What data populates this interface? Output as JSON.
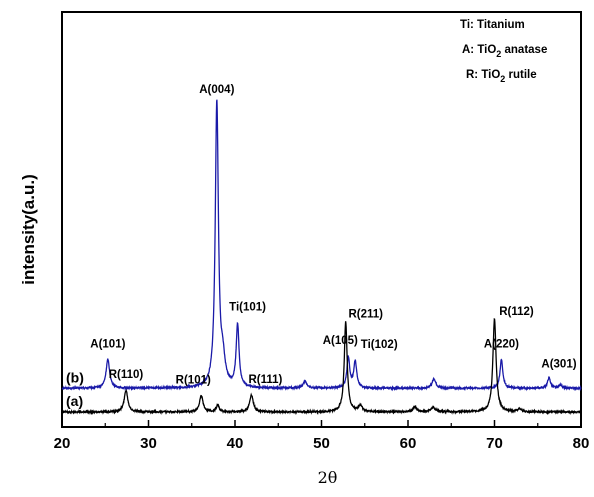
{
  "chart_data": {
    "type": "line",
    "xlabel": "2θ",
    "ylabel": "intensity(a.u.)",
    "xlim": [
      20,
      80
    ],
    "xticks": [
      "20",
      "30",
      "40",
      "50",
      "60",
      "70",
      "80"
    ],
    "yticks_shown": false,
    "grid": false,
    "legend": {
      "placement": "top-right",
      "entries": [
        {
          "prefix": "Ti: Titanium",
          "sub": "",
          "suffix": ""
        },
        {
          "prefix": "A: TiO",
          "sub": "2",
          "suffix": " anatase"
        },
        {
          "prefix": "R: TiO",
          "sub": "2",
          "suffix": " rutile"
        }
      ]
    },
    "series": [
      {
        "name": "(b)",
        "color": "#1a1aa8",
        "baseline": 0.25,
        "peaks": [
          {
            "x": 25.3,
            "h": 0.3,
            "w": 0.25
          },
          {
            "x": 37.9,
            "h": 3.0,
            "w": 0.22
          },
          {
            "x": 38.6,
            "h": 0.25,
            "w": 0.3
          },
          {
            "x": 40.3,
            "h": 0.66,
            "w": 0.2
          },
          {
            "x": 48.1,
            "h": 0.07,
            "w": 0.25
          },
          {
            "x": 53.1,
            "h": 0.32,
            "w": 0.2
          },
          {
            "x": 53.9,
            "h": 0.28,
            "w": 0.2
          },
          {
            "x": 63.0,
            "h": 0.1,
            "w": 0.25
          },
          {
            "x": 70.8,
            "h": 0.3,
            "w": 0.2
          },
          {
            "x": 76.3,
            "h": 0.11,
            "w": 0.2
          },
          {
            "x": 77.6,
            "h": 0.04,
            "w": 0.2
          }
        ]
      },
      {
        "name": "(a)",
        "color": "#000000",
        "baseline": 0.0,
        "peaks": [
          {
            "x": 27.4,
            "h": 0.23,
            "w": 0.25
          },
          {
            "x": 36.1,
            "h": 0.17,
            "w": 0.25
          },
          {
            "x": 38.0,
            "h": 0.07,
            "w": 0.2
          },
          {
            "x": 41.9,
            "h": 0.18,
            "w": 0.25
          },
          {
            "x": 54.5,
            "h": 0.07,
            "w": 0.25
          },
          {
            "x": 52.8,
            "h": 0.95,
            "w": 0.2
          },
          {
            "x": 60.8,
            "h": 0.05,
            "w": 0.3
          },
          {
            "x": 62.9,
            "h": 0.05,
            "w": 0.3
          },
          {
            "x": 70.0,
            "h": 0.98,
            "w": 0.22
          },
          {
            "x": 72.9,
            "h": 0.03,
            "w": 0.25
          }
        ]
      }
    ],
    "peak_labels": [
      {
        "series": "(b)",
        "x": 25.3,
        "text": "A(101)"
      },
      {
        "series": "(b)",
        "x": 37.9,
        "text": "A(004)"
      },
      {
        "series": "(b)",
        "x": 40.3,
        "text": "Ti(101)"
      },
      {
        "series": "(b)",
        "x": 53.1,
        "text": "A(105)"
      },
      {
        "series": "(b)",
        "x": 53.9,
        "text": "Ti(102)"
      },
      {
        "series": "(b)",
        "x": 70.8,
        "text": "A(220)"
      },
      {
        "series": "(b)",
        "x": 76.3,
        "text": "A(301)"
      },
      {
        "series": "(a)",
        "x": 27.4,
        "text": "R(110)"
      },
      {
        "series": "(a)",
        "x": 36.1,
        "text": "R(101)"
      },
      {
        "series": "(a)",
        "x": 41.9,
        "text": "R(111)"
      },
      {
        "series": "(a)",
        "x": 52.8,
        "text": "R(211)"
      },
      {
        "series": "(a)",
        "x": 70.0,
        "text": "R(112)"
      }
    ]
  }
}
